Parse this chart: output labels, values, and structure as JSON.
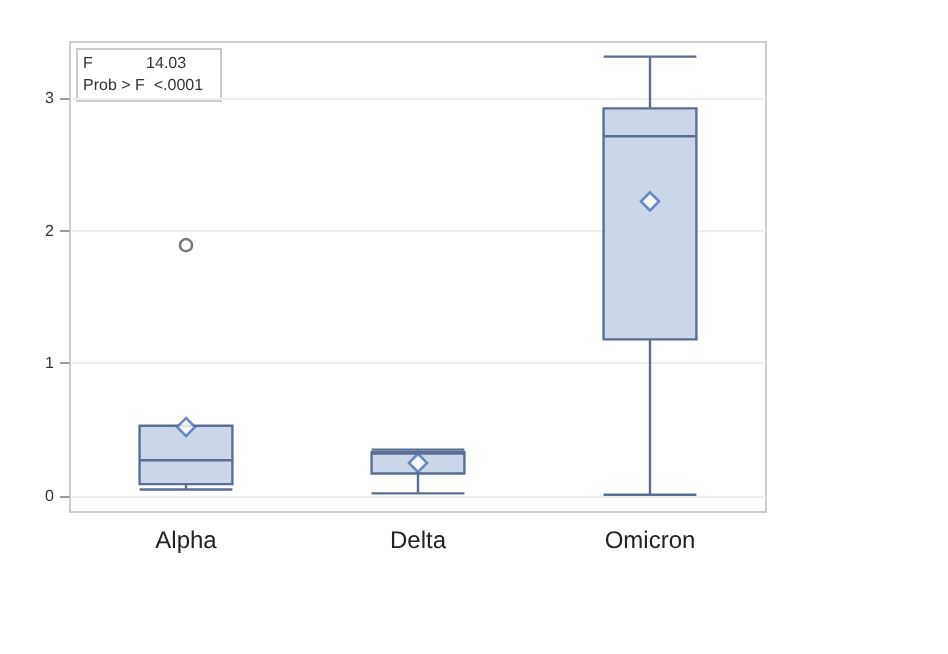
{
  "chart_data": {
    "type": "box",
    "categories": [
      "Alpha",
      "Delta",
      "Omicron"
    ],
    "boxes": [
      {
        "low": 0.05,
        "q1": 0.09,
        "median": 0.27,
        "q3": 0.53,
        "high": 0.53,
        "mean": 0.52,
        "outliers": [
          1.89
        ]
      },
      {
        "low": 0.02,
        "q1": 0.17,
        "median": 0.32,
        "q3": 0.33,
        "high": 0.35,
        "mean": 0.25
      },
      {
        "low": 0.01,
        "q1": 1.18,
        "median": 2.71,
        "q3": 2.92,
        "high": 3.31,
        "mean": 2.22
      }
    ],
    "color": "#5a6f91",
    "ylim": [
      -0.12,
      3.42
    ],
    "yticks": [
      0,
      1,
      2,
      3
    ],
    "grid": "y",
    "annotations": [
      "F            14.03",
      "Prob > F  <.0001"
    ]
  }
}
